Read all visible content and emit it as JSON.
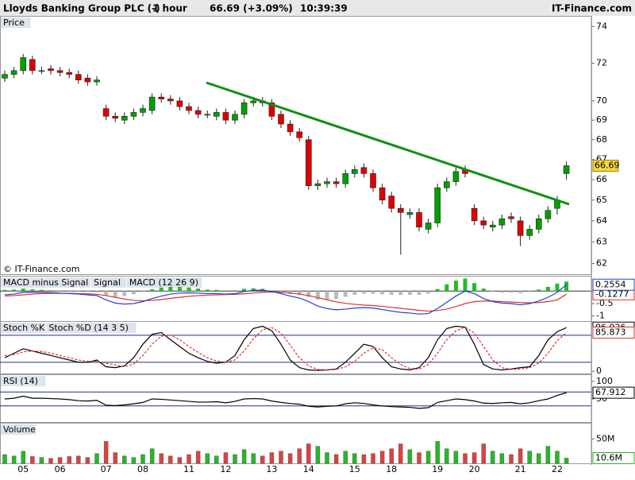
{
  "header": {
    "title": "Lloyds Banking Group PLC (-)",
    "interval": "1 hour",
    "quote": "66.69 (+3.09%)",
    "time": "10:39:39",
    "brand": "IT-Finance.com"
  },
  "chart_data": [
    {
      "type": "candlestick",
      "title": "Price",
      "credit": "© IT-Finance.com",
      "log": true,
      "ylim": [
        61.5,
        74.5
      ],
      "yticks": [
        62,
        63,
        64,
        65,
        66,
        67,
        68,
        69,
        70,
        72,
        74
      ],
      "up_color": "#00a000",
      "down_color": "#e00000",
      "categories": [
        null,
        null,
        "05",
        null,
        null,
        null,
        "06",
        null,
        null,
        null,
        null,
        "07",
        null,
        null,
        null,
        "08",
        null,
        null,
        null,
        null,
        "11",
        null,
        null,
        null,
        "12",
        null,
        null,
        null,
        null,
        "13",
        null,
        null,
        null,
        "14",
        null,
        null,
        null,
        null,
        "15",
        null,
        null,
        null,
        "18",
        null,
        null,
        null,
        null,
        "19",
        null,
        null,
        null,
        "20",
        null,
        null,
        null,
        null,
        "21",
        null,
        null,
        null,
        "22",
        null
      ],
      "open": [
        71.2,
        71.4,
        71.6,
        72.2,
        71.6,
        71.7,
        71.6,
        71.5,
        71.4,
        71.2,
        71.0,
        69.6,
        69.2,
        69.0,
        69.2,
        69.4,
        69.5,
        70.2,
        70.1,
        70.0,
        69.7,
        69.5,
        69.3,
        69.2,
        69.4,
        69.0,
        69.3,
        69.9,
        70.0,
        69.9,
        69.3,
        68.8,
        68.4,
        68.0,
        65.7,
        65.8,
        65.9,
        65.8,
        66.3,
        66.6,
        66.3,
        65.6,
        65.2,
        64.6,
        64.3,
        64.4,
        63.6,
        63.9,
        65.6,
        65.9,
        66.5,
        64.6,
        64.0,
        63.7,
        63.8,
        64.2,
        64.0,
        63.3,
        63.6,
        64.1,
        64.6,
        66.3
      ],
      "high": [
        71.6,
        71.8,
        72.5,
        72.4,
        71.8,
        71.9,
        71.8,
        71.7,
        71.6,
        71.4,
        71.3,
        69.8,
        69.4,
        69.4,
        69.6,
        69.8,
        70.4,
        70.4,
        70.3,
        70.2,
        69.9,
        69.7,
        69.5,
        69.6,
        69.6,
        69.5,
        70.1,
        70.2,
        70.2,
        70.1,
        69.5,
        69.0,
        68.6,
        68.2,
        66.0,
        66.1,
        66.1,
        66.5,
        66.7,
        66.8,
        66.5,
        65.8,
        65.4,
        64.8,
        64.6,
        64.6,
        64.1,
        65.8,
        66.1,
        66.6,
        66.7,
        64.8,
        64.2,
        64.0,
        64.3,
        64.4,
        64.2,
        63.8,
        64.3,
        64.7,
        65.2,
        66.9
      ],
      "low": [
        71.0,
        71.2,
        71.4,
        71.4,
        71.4,
        71.4,
        71.3,
        71.2,
        70.9,
        70.8,
        70.8,
        69.0,
        68.9,
        68.8,
        69.0,
        69.2,
        69.3,
        69.9,
        69.8,
        69.5,
        69.3,
        69.1,
        69.1,
        69.0,
        68.8,
        68.8,
        69.1,
        69.7,
        69.7,
        69.0,
        68.6,
        68.2,
        67.9,
        65.5,
        65.5,
        65.6,
        65.6,
        65.6,
        66.1,
        66.1,
        65.4,
        64.8,
        64.4,
        62.4,
        64.1,
        63.5,
        63.4,
        63.7,
        65.4,
        65.7,
        66.1,
        63.8,
        63.6,
        63.5,
        63.6,
        63.9,
        62.8,
        63.1,
        63.4,
        63.9,
        64.3,
        66.0
      ],
      "close": [
        71.4,
        71.6,
        72.3,
        71.6,
        71.6,
        71.6,
        71.5,
        71.4,
        71.1,
        71.0,
        71.1,
        69.2,
        69.1,
        69.2,
        69.4,
        69.6,
        70.2,
        70.1,
        70.0,
        69.7,
        69.5,
        69.3,
        69.3,
        69.4,
        69.0,
        69.3,
        69.9,
        70.0,
        69.9,
        69.2,
        68.8,
        68.4,
        68.1,
        65.7,
        65.8,
        65.9,
        65.8,
        66.3,
        66.5,
        66.3,
        65.6,
        65.0,
        64.6,
        64.4,
        64.4,
        63.7,
        63.9,
        65.6,
        65.9,
        66.4,
        66.3,
        64.0,
        63.8,
        63.8,
        64.1,
        64.1,
        63.3,
        63.6,
        64.1,
        64.5,
        65.0,
        66.69
      ]
    },
    {
      "type": "line",
      "ylim": [
        -1.2,
        0.55
      ],
      "yticks": [
        0,
        -0.5,
        -1
      ],
      "zero_line": true,
      "series": [
        {
          "name": "MACD minus Signal",
          "color": "#22bb22",
          "style": "histogram",
          "values": [
            0.05,
            0.06,
            0.1,
            0.07,
            0.05,
            0.03,
            0.01,
            -0.01,
            -0.02,
            -0.04,
            -0.05,
            -0.17,
            -0.23,
            -0.2,
            -0.13,
            -0.03,
            0.07,
            0.14,
            0.17,
            0.17,
            0.14,
            0.1,
            0.06,
            0.05,
            0.02,
            0.03,
            0.09,
            0.11,
            0.09,
            0.02,
            -0.05,
            -0.12,
            -0.16,
            -0.24,
            -0.34,
            -0.35,
            -0.32,
            -0.23,
            -0.15,
            -0.1,
            -0.1,
            -0.13,
            -0.15,
            -0.16,
            -0.15,
            -0.15,
            -0.1,
            0.08,
            0.27,
            0.42,
            0.5,
            0.32,
            0.1,
            -0.02,
            -0.06,
            -0.06,
            -0.09,
            -0.03,
            0.06,
            0.17,
            0.3,
            0.38
          ]
        },
        {
          "name": "Signal",
          "color": "#e03030",
          "style": "line",
          "values": [
            -0.2,
            -0.18,
            -0.15,
            -0.12,
            -0.1,
            -0.09,
            -0.09,
            -0.09,
            -0.1,
            -0.11,
            -0.13,
            -0.18,
            -0.25,
            -0.32,
            -0.37,
            -0.39,
            -0.37,
            -0.34,
            -0.29,
            -0.25,
            -0.21,
            -0.18,
            -0.16,
            -0.15,
            -0.14,
            -0.13,
            -0.11,
            -0.08,
            -0.05,
            -0.04,
            -0.05,
            -0.08,
            -0.12,
            -0.18,
            -0.26,
            -0.35,
            -0.43,
            -0.49,
            -0.53,
            -0.56,
            -0.58,
            -0.61,
            -0.65,
            -0.69,
            -0.73,
            -0.77,
            -0.8,
            -0.78,
            -0.72,
            -0.62,
            -0.5,
            -0.42,
            -0.4,
            -0.4,
            -0.42,
            -0.44,
            -0.46,
            -0.47,
            -0.46,
            -0.42,
            -0.35,
            -0.1277
          ]
        },
        {
          "name": "MACD (12 26 9)",
          "color": "#2040d0",
          "style": "line",
          "values": [
            -0.15,
            -0.12,
            -0.05,
            -0.05,
            -0.05,
            -0.06,
            -0.08,
            -0.1,
            -0.12,
            -0.15,
            -0.18,
            -0.35,
            -0.48,
            -0.52,
            -0.5,
            -0.42,
            -0.3,
            -0.2,
            -0.12,
            -0.08,
            -0.07,
            -0.08,
            -0.1,
            -0.1,
            -0.12,
            -0.1,
            -0.02,
            0.03,
            0.04,
            -0.02,
            -0.1,
            -0.2,
            -0.28,
            -0.42,
            -0.6,
            -0.7,
            -0.75,
            -0.72,
            -0.68,
            -0.66,
            -0.68,
            -0.74,
            -0.8,
            -0.85,
            -0.88,
            -0.92,
            -0.9,
            -0.7,
            -0.45,
            -0.2,
            0.0,
            -0.1,
            -0.3,
            -0.42,
            -0.48,
            -0.5,
            -0.55,
            -0.5,
            -0.4,
            -0.25,
            -0.05,
            0.2554
          ]
        }
      ]
    },
    {
      "type": "line",
      "ylim": [
        -5,
        108
      ],
      "yticks": [
        0
      ],
      "levels": [
        20,
        80
      ],
      "series": [
        {
          "name": "Stoch %K",
          "color": "#000000",
          "style": "line",
          "values": [
            30,
            40,
            50,
            45,
            40,
            35,
            30,
            25,
            20,
            20,
            25,
            10,
            8,
            12,
            30,
            60,
            82,
            86,
            70,
            55,
            40,
            30,
            22,
            18,
            20,
            35,
            70,
            95,
            100,
            90,
            60,
            25,
            8,
            3,
            2,
            3,
            5,
            20,
            40,
            60,
            55,
            30,
            10,
            5,
            3,
            8,
            30,
            70,
            95,
            100,
            98,
            60,
            15,
            5,
            3,
            5,
            8,
            10,
            35,
            70,
            88,
            96.926
          ]
        },
        {
          "name": "Stoch %D (14 3 5)",
          "color": "#e03030",
          "style": "line",
          "values": [
            35,
            37,
            43,
            45,
            44,
            40,
            35,
            30,
            25,
            22,
            22,
            18,
            14,
            10,
            16,
            35,
            60,
            78,
            80,
            70,
            55,
            42,
            30,
            23,
            20,
            25,
            45,
            72,
            92,
            97,
            85,
            58,
            30,
            12,
            4,
            3,
            4,
            10,
            22,
            40,
            52,
            48,
            30,
            15,
            6,
            5,
            15,
            40,
            70,
            90,
            98,
            85,
            55,
            25,
            8,
            4,
            5,
            8,
            18,
            40,
            68,
            85.873
          ]
        }
      ]
    },
    {
      "type": "line",
      "ylim": [
        -16,
        116
      ],
      "yticks": [
        50,
        100
      ],
      "levels": [
        30,
        70
      ],
      "series": [
        {
          "name": "RSI (14)",
          "color": "#000000",
          "style": "line",
          "values": [
            50,
            52,
            58,
            52,
            52,
            51,
            50,
            48,
            45,
            44,
            46,
            32,
            31,
            33,
            36,
            40,
            50,
            49,
            47,
            45,
            43,
            41,
            41,
            42,
            39,
            43,
            50,
            51,
            50,
            44,
            40,
            37,
            35,
            29,
            27,
            29,
            30,
            36,
            39,
            37,
            33,
            30,
            28,
            27,
            26,
            23,
            25,
            40,
            45,
            50,
            48,
            44,
            38,
            37,
            39,
            40,
            36,
            39,
            45,
            50,
            60,
            67.912
          ]
        }
      ]
    },
    {
      "type": "bar",
      "ylim": [
        0,
        80
      ],
      "yticks": [
        {
          "value": 50,
          "label": "50M"
        }
      ],
      "series": [
        {
          "name": "Volume",
          "color": "#22bb22",
          "values": [
            18,
            15,
            25,
            14,
            12,
            10,
            12,
            14,
            15,
            12,
            20,
            45,
            22,
            15,
            12,
            18,
            30,
            20,
            15,
            12,
            18,
            25,
            20,
            15,
            22,
            18,
            28,
            20,
            15,
            22,
            25,
            20,
            30,
            40,
            35,
            22,
            18,
            25,
            20,
            18,
            20,
            25,
            30,
            40,
            28,
            22,
            25,
            45,
            30,
            25,
            20,
            22,
            40,
            25,
            20,
            18,
            30,
            25,
            20,
            35,
            25,
            10.6
          ],
          "value_labels": [
            null,
            null,
            null,
            null,
            null,
            null,
            null,
            null,
            null,
            null,
            null,
            null,
            null,
            null,
            null,
            null,
            null,
            null,
            null,
            null,
            null,
            null,
            null,
            null,
            null,
            null,
            null,
            null,
            null,
            null,
            null,
            null,
            null,
            null,
            null,
            null,
            null,
            null,
            null,
            null,
            null,
            null,
            null,
            null,
            null,
            null,
            null,
            null,
            null,
            null,
            null,
            null,
            null,
            null,
            null,
            null,
            null,
            null,
            null,
            null,
            null,
            "10.6M"
          ]
        }
      ]
    }
  ]
}
